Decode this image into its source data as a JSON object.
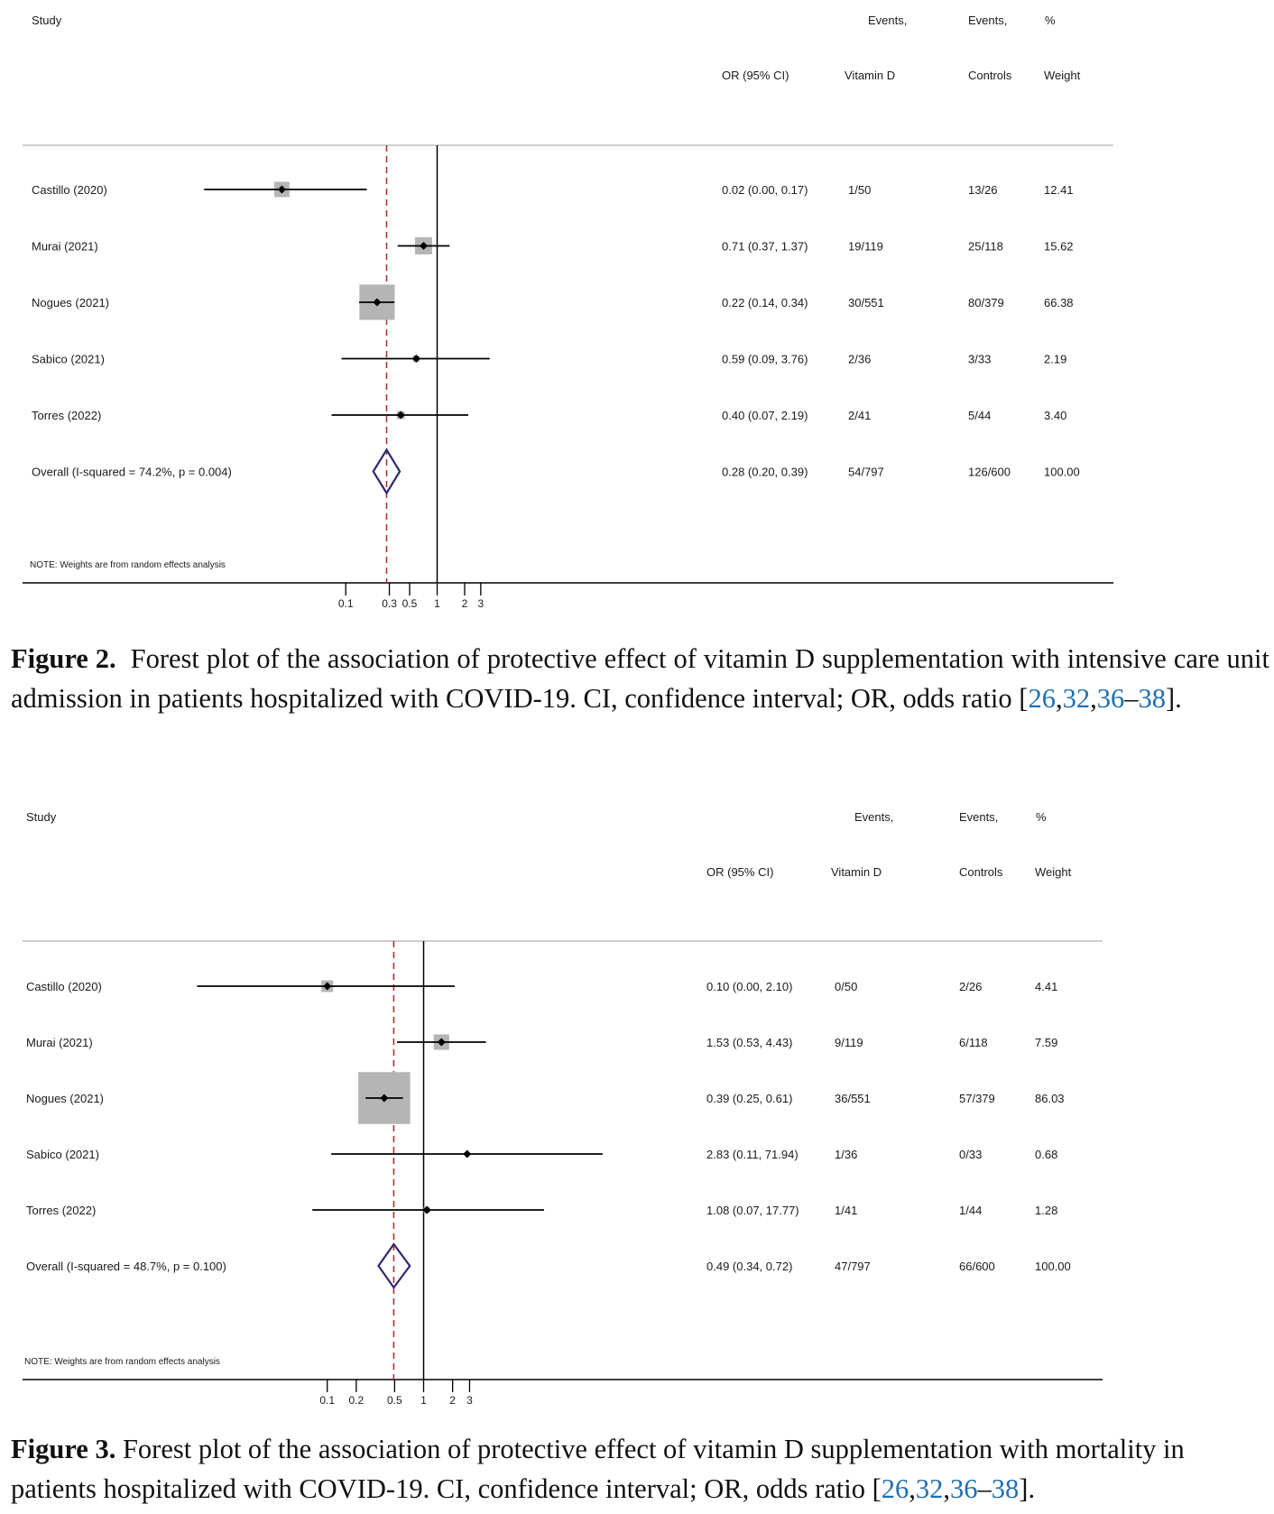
{
  "figures": [
    {
      "id": "fig2",
      "chart_data": {
        "type": "forest",
        "headers": {
          "study": "Study",
          "or_ci": "OR (95% CI)",
          "events_vit_1": "Events,",
          "events_vit_2": "Vitamin D",
          "events_ctrl_1": "Events,",
          "events_ctrl_2": "Controls",
          "weight_1": "%",
          "weight_2": "Weight"
        },
        "studies": [
          {
            "label": "Castillo (2020)",
            "or": 0.02,
            "lo": 0.0,
            "hi": 0.17,
            "or_text": "0.02 (0.00, 0.17)",
            "ev_vit": "1/50",
            "ev_ctrl": "13/26",
            "weight": 12.41,
            "weight_text": "12.41"
          },
          {
            "label": "Murai (2021)",
            "or": 0.71,
            "lo": 0.37,
            "hi": 1.37,
            "or_text": "0.71 (0.37, 1.37)",
            "ev_vit": "19/119",
            "ev_ctrl": "25/118",
            "weight": 15.62,
            "weight_text": "15.62"
          },
          {
            "label": "Nogues (2021)",
            "or": 0.22,
            "lo": 0.14,
            "hi": 0.34,
            "or_text": "0.22 (0.14, 0.34)",
            "ev_vit": "30/551",
            "ev_ctrl": "80/379",
            "weight": 66.38,
            "weight_text": "66.38"
          },
          {
            "label": "Sabico (2021)",
            "or": 0.59,
            "lo": 0.09,
            "hi": 3.76,
            "or_text": "0.59 (0.09, 3.76)",
            "ev_vit": "2/36",
            "ev_ctrl": "3/33",
            "weight": 2.19,
            "weight_text": "2.19"
          },
          {
            "label": "Torres (2022)",
            "or": 0.4,
            "lo": 0.07,
            "hi": 2.19,
            "or_text": "0.40 (0.07, 2.19)",
            "ev_vit": "2/41",
            "ev_ctrl": "5/44",
            "weight": 3.4,
            "weight_text": "3.40"
          }
        ],
        "overall": {
          "label": "Overall  (I-squared = 74.2%, p = 0.004)",
          "or": 0.28,
          "lo": 0.2,
          "hi": 0.39,
          "or_text": "0.28 (0.20, 0.39)",
          "ev_vit": "54/797",
          "ev_ctrl": "126/600",
          "weight_text": "100.00"
        },
        "note": "NOTE: Weights are from random effects analysis",
        "x_scale": "log",
        "x_ticks": [
          0.1,
          0.3,
          0.5,
          1,
          2,
          3
        ],
        "x_tick_labels": [
          "0.1",
          "0.3",
          "0.5",
          "1",
          "2",
          "3"
        ],
        "null_line": 1
      },
      "caption": {
        "label": "Figure 2.",
        "text": "Forest plot of the association of protective effect of vitamin D supplementation with intensive care unit admission in patients hospitalized with COVID-19. CI, confidence interval; OR, odds ratio [",
        "refs": [
          "26",
          "32",
          "36",
          "38"
        ],
        "end": "]."
      }
    },
    {
      "id": "fig3",
      "chart_data": {
        "type": "forest",
        "headers": {
          "study": "Study",
          "or_ci": "OR (95% CI)",
          "events_vit_1": "Events,",
          "events_vit_2": "Vitamin D",
          "events_ctrl_1": "Events,",
          "events_ctrl_2": "Controls",
          "weight_1": "%",
          "weight_2": "Weight"
        },
        "studies": [
          {
            "label": "Castillo (2020)",
            "or": 0.1,
            "lo": 0.0,
            "hi": 2.1,
            "or_text": "0.10 (0.00, 2.10)",
            "ev_vit": "0/50",
            "ev_ctrl": "2/26",
            "weight": 4.41,
            "weight_text": "4.41"
          },
          {
            "label": "Murai (2021)",
            "or": 1.53,
            "lo": 0.53,
            "hi": 4.43,
            "or_text": "1.53 (0.53, 4.43)",
            "ev_vit": "9/119",
            "ev_ctrl": "6/118",
            "weight": 7.59,
            "weight_text": "7.59"
          },
          {
            "label": "Nogues (2021)",
            "or": 0.39,
            "lo": 0.25,
            "hi": 0.61,
            "or_text": "0.39 (0.25, 0.61)",
            "ev_vit": "36/551",
            "ev_ctrl": "57/379",
            "weight": 86.03,
            "weight_text": "86.03"
          },
          {
            "label": "Sabico (2021)",
            "or": 2.83,
            "lo": 0.11,
            "hi": 71.94,
            "or_text": "2.83 (0.11, 71.94)",
            "ev_vit": "1/36",
            "ev_ctrl": "0/33",
            "weight": 0.68,
            "weight_text": "0.68"
          },
          {
            "label": "Torres (2022)",
            "or": 1.08,
            "lo": 0.07,
            "hi": 17.77,
            "or_text": "1.08 (0.07, 17.77)",
            "ev_vit": "1/41",
            "ev_ctrl": "1/44",
            "weight": 1.28,
            "weight_text": "1.28"
          }
        ],
        "overall": {
          "label": "Overall  (I-squared = 48.7%, p = 0.100)",
          "or": 0.49,
          "lo": 0.34,
          "hi": 0.72,
          "or_text": "0.49 (0.34, 0.72)",
          "ev_vit": "47/797",
          "ev_ctrl": "66/600",
          "weight_text": "100.00"
        },
        "note": "NOTE: Weights are from random effects analysis",
        "x_scale": "log",
        "x_ticks": [
          0.1,
          0.2,
          0.5,
          1,
          2,
          3
        ],
        "x_tick_labels": [
          "0.1",
          "0.2",
          "0.5",
          "1",
          "2",
          "3"
        ],
        "null_line": 1
      },
      "caption": {
        "label": "Figure 3.",
        "text": "Forest plot of the association of protective effect of vitamin D supplementation with mortality in patients hospitalized with COVID-19. CI, confidence interval; OR, odds ratio [",
        "refs": [
          "26",
          "32",
          "36",
          "38"
        ],
        "end": "]."
      }
    }
  ],
  "colors": {
    "box": "#b5b5b5",
    "diamond": "#2e2a6e",
    "pooled_line": "#b0272d",
    "axis": "#000000",
    "ci_line": "#000000",
    "ref_link": "#1f6fb2"
  }
}
